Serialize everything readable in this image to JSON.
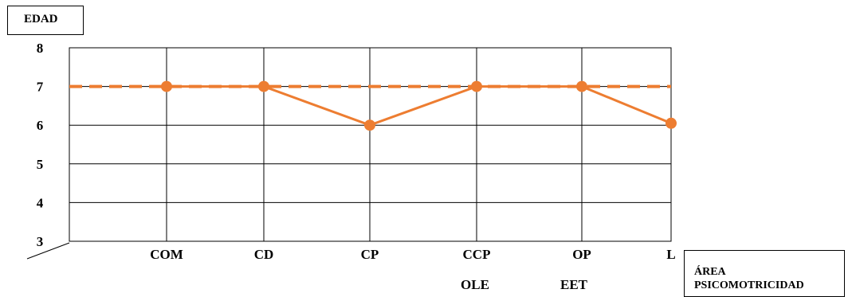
{
  "chart_data": {
    "type": "line",
    "ylabel": "EDAD",
    "xlabel": [
      "ÁREA",
      "PSICOMOTRICIDAD"
    ],
    "ylim": [
      3,
      8
    ],
    "yticks": [
      "3",
      "4",
      "5",
      "6",
      "7",
      "8"
    ],
    "categories": [
      "COM",
      "CD",
      "CP",
      "CCP",
      "OP",
      "L"
    ],
    "sub_labels": {
      "CCP": "OLE",
      "OP": "EET"
    },
    "series": [
      {
        "values": [
          7,
          7,
          7,
          7,
          7,
          7
        ],
        "color": "#ED7D31",
        "style": "dashed"
      },
      {
        "values": [
          7,
          7,
          6,
          7,
          7,
          6.05
        ],
        "color": "#ED7D31",
        "style": "solid",
        "markers": true
      }
    ],
    "grid": true
  }
}
